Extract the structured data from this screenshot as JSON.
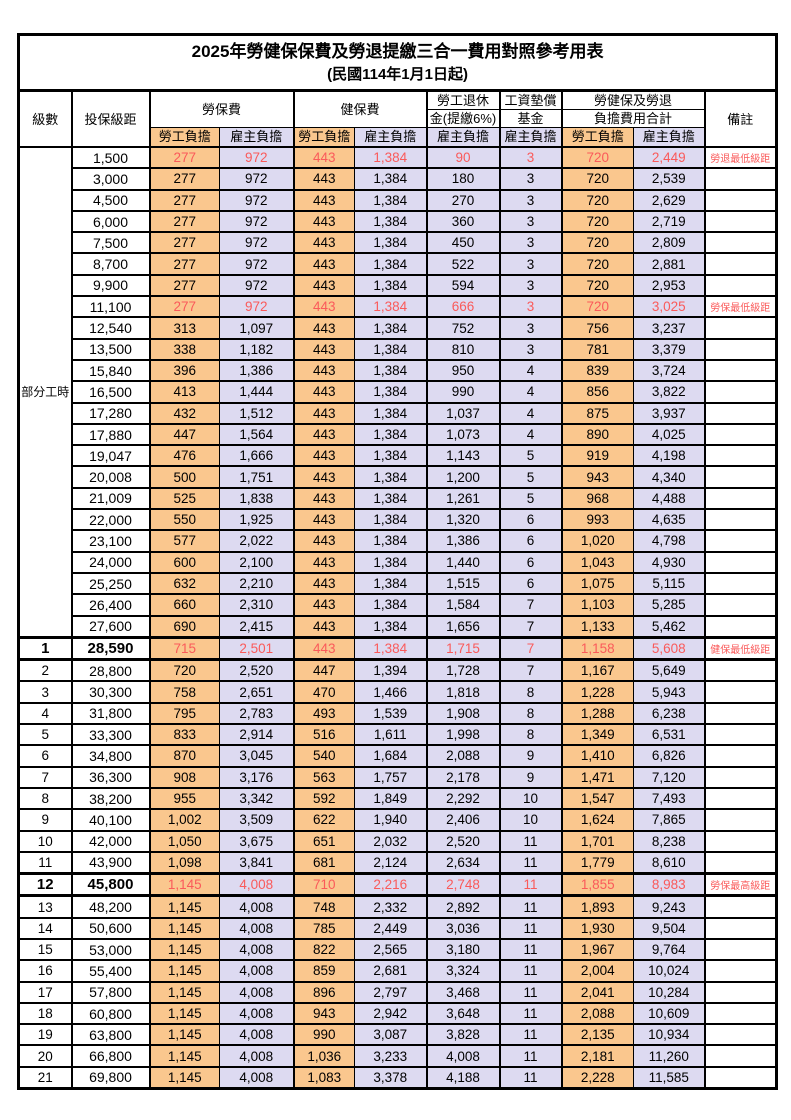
{
  "title": "2025年勞健保保費及勞退提繳三合一費用對照參考用表",
  "subtitle": "(民國114年1月1日起)",
  "colors": {
    "employee_col_bg": "#FAC78E",
    "employer_col_bg": "#DDDAF1",
    "highlight_text": "#FA5A5A",
    "border": "#000000"
  },
  "table": {
    "head": {
      "level": "級數",
      "bracket": "投保級距",
      "labor": "勞保費",
      "health": "健保費",
      "pension_line1": "勞工退休",
      "pension_line2": "金(提繳6%)",
      "fund_line1": "工資墊償",
      "fund_line2": "基金",
      "total_line1": "勞健保及勞退",
      "total_line2": "負擔費用合計",
      "note": "備註",
      "employee": "勞工負擔",
      "employer": "雇主負擔"
    },
    "part_time_label": "部分工時",
    "rows": [
      {
        "level": "",
        "cells": [
          "1,500",
          "277",
          "972",
          "443",
          "1,384",
          "90",
          "3",
          "720",
          "2,449"
        ],
        "note": "勞退最低級距",
        "red": true,
        "bold": false
      },
      {
        "level": "",
        "cells": [
          "3,000",
          "277",
          "972",
          "443",
          "1,384",
          "180",
          "3",
          "720",
          "2,539"
        ],
        "note": "",
        "red": false,
        "bold": false
      },
      {
        "level": "",
        "cells": [
          "4,500",
          "277",
          "972",
          "443",
          "1,384",
          "270",
          "3",
          "720",
          "2,629"
        ],
        "note": "",
        "red": false,
        "bold": false
      },
      {
        "level": "",
        "cells": [
          "6,000",
          "277",
          "972",
          "443",
          "1,384",
          "360",
          "3",
          "720",
          "2,719"
        ],
        "note": "",
        "red": false,
        "bold": false
      },
      {
        "level": "",
        "cells": [
          "7,500",
          "277",
          "972",
          "443",
          "1,384",
          "450",
          "3",
          "720",
          "2,809"
        ],
        "note": "",
        "red": false,
        "bold": false
      },
      {
        "level": "",
        "cells": [
          "8,700",
          "277",
          "972",
          "443",
          "1,384",
          "522",
          "3",
          "720",
          "2,881"
        ],
        "note": "",
        "red": false,
        "bold": false
      },
      {
        "level": "",
        "cells": [
          "9,900",
          "277",
          "972",
          "443",
          "1,384",
          "594",
          "3",
          "720",
          "2,953"
        ],
        "note": "",
        "red": false,
        "bold": false
      },
      {
        "level": "",
        "cells": [
          "11,100",
          "277",
          "972",
          "443",
          "1,384",
          "666",
          "3",
          "720",
          "3,025"
        ],
        "note": "勞保最低級距",
        "red": true,
        "bold": false
      },
      {
        "level": "",
        "cells": [
          "12,540",
          "313",
          "1,097",
          "443",
          "1,384",
          "752",
          "3",
          "756",
          "3,237"
        ],
        "note": "",
        "red": false,
        "bold": false
      },
      {
        "level": "",
        "cells": [
          "13,500",
          "338",
          "1,182",
          "443",
          "1,384",
          "810",
          "3",
          "781",
          "3,379"
        ],
        "note": "",
        "red": false,
        "bold": false
      },
      {
        "level": "",
        "cells": [
          "15,840",
          "396",
          "1,386",
          "443",
          "1,384",
          "950",
          "4",
          "839",
          "3,724"
        ],
        "note": "",
        "red": false,
        "bold": false
      },
      {
        "level": "",
        "cells": [
          "16,500",
          "413",
          "1,444",
          "443",
          "1,384",
          "990",
          "4",
          "856",
          "3,822"
        ],
        "note": "",
        "red": false,
        "bold": false
      },
      {
        "level": "",
        "cells": [
          "17,280",
          "432",
          "1,512",
          "443",
          "1,384",
          "1,037",
          "4",
          "875",
          "3,937"
        ],
        "note": "",
        "red": false,
        "bold": false
      },
      {
        "level": "",
        "cells": [
          "17,880",
          "447",
          "1,564",
          "443",
          "1,384",
          "1,073",
          "4",
          "890",
          "4,025"
        ],
        "note": "",
        "red": false,
        "bold": false
      },
      {
        "level": "",
        "cells": [
          "19,047",
          "476",
          "1,666",
          "443",
          "1,384",
          "1,143",
          "5",
          "919",
          "4,198"
        ],
        "note": "",
        "red": false,
        "bold": false
      },
      {
        "level": "",
        "cells": [
          "20,008",
          "500",
          "1,751",
          "443",
          "1,384",
          "1,200",
          "5",
          "943",
          "4,340"
        ],
        "note": "",
        "red": false,
        "bold": false
      },
      {
        "level": "",
        "cells": [
          "21,009",
          "525",
          "1,838",
          "443",
          "1,384",
          "1,261",
          "5",
          "968",
          "4,488"
        ],
        "note": "",
        "red": false,
        "bold": false
      },
      {
        "level": "",
        "cells": [
          "22,000",
          "550",
          "1,925",
          "443",
          "1,384",
          "1,320",
          "6",
          "993",
          "4,635"
        ],
        "note": "",
        "red": false,
        "bold": false
      },
      {
        "level": "",
        "cells": [
          "23,100",
          "577",
          "2,022",
          "443",
          "1,384",
          "1,386",
          "6",
          "1,020",
          "4,798"
        ],
        "note": "",
        "red": false,
        "bold": false
      },
      {
        "level": "",
        "cells": [
          "24,000",
          "600",
          "2,100",
          "443",
          "1,384",
          "1,440",
          "6",
          "1,043",
          "4,930"
        ],
        "note": "",
        "red": false,
        "bold": false
      },
      {
        "level": "",
        "cells": [
          "25,250",
          "632",
          "2,210",
          "443",
          "1,384",
          "1,515",
          "6",
          "1,075",
          "5,115"
        ],
        "note": "",
        "red": false,
        "bold": false
      },
      {
        "level": "",
        "cells": [
          "26,400",
          "660",
          "2,310",
          "443",
          "1,384",
          "1,584",
          "7",
          "1,103",
          "5,285"
        ],
        "note": "",
        "red": false,
        "bold": false
      },
      {
        "level": "",
        "cells": [
          "27,600",
          "690",
          "2,415",
          "443",
          "1,384",
          "1,656",
          "7",
          "1,133",
          "5,462"
        ],
        "note": "",
        "red": false,
        "bold": false
      },
      {
        "level": "1",
        "cells": [
          "28,590",
          "715",
          "2,501",
          "443",
          "1,384",
          "1,715",
          "7",
          "1,158",
          "5,608"
        ],
        "note": "健保最低級距",
        "red": true,
        "bold": true
      },
      {
        "level": "2",
        "cells": [
          "28,800",
          "720",
          "2,520",
          "447",
          "1,394",
          "1,728",
          "7",
          "1,167",
          "5,649"
        ],
        "note": "",
        "red": false,
        "bold": false
      },
      {
        "level": "3",
        "cells": [
          "30,300",
          "758",
          "2,651",
          "470",
          "1,466",
          "1,818",
          "8",
          "1,228",
          "5,943"
        ],
        "note": "",
        "red": false,
        "bold": false
      },
      {
        "level": "4",
        "cells": [
          "31,800",
          "795",
          "2,783",
          "493",
          "1,539",
          "1,908",
          "8",
          "1,288",
          "6,238"
        ],
        "note": "",
        "red": false,
        "bold": false
      },
      {
        "level": "5",
        "cells": [
          "33,300",
          "833",
          "2,914",
          "516",
          "1,611",
          "1,998",
          "8",
          "1,349",
          "6,531"
        ],
        "note": "",
        "red": false,
        "bold": false
      },
      {
        "level": "6",
        "cells": [
          "34,800",
          "870",
          "3,045",
          "540",
          "1,684",
          "2,088",
          "9",
          "1,410",
          "6,826"
        ],
        "note": "",
        "red": false,
        "bold": false
      },
      {
        "level": "7",
        "cells": [
          "36,300",
          "908",
          "3,176",
          "563",
          "1,757",
          "2,178",
          "9",
          "1,471",
          "7,120"
        ],
        "note": "",
        "red": false,
        "bold": false
      },
      {
        "level": "8",
        "cells": [
          "38,200",
          "955",
          "3,342",
          "592",
          "1,849",
          "2,292",
          "10",
          "1,547",
          "7,493"
        ],
        "note": "",
        "red": false,
        "bold": false
      },
      {
        "level": "9",
        "cells": [
          "40,100",
          "1,002",
          "3,509",
          "622",
          "1,940",
          "2,406",
          "10",
          "1,624",
          "7,865"
        ],
        "note": "",
        "red": false,
        "bold": false
      },
      {
        "level": "10",
        "cells": [
          "42,000",
          "1,050",
          "3,675",
          "651",
          "2,032",
          "2,520",
          "11",
          "1,701",
          "8,238"
        ],
        "note": "",
        "red": false,
        "bold": false
      },
      {
        "level": "11",
        "cells": [
          "43,900",
          "1,098",
          "3,841",
          "681",
          "2,124",
          "2,634",
          "11",
          "1,779",
          "8,610"
        ],
        "note": "",
        "red": false,
        "bold": false
      },
      {
        "level": "12",
        "cells": [
          "45,800",
          "1,145",
          "4,008",
          "710",
          "2,216",
          "2,748",
          "11",
          "1,855",
          "8,983"
        ],
        "note": "勞保最高級距",
        "red": true,
        "bold": true
      },
      {
        "level": "13",
        "cells": [
          "48,200",
          "1,145",
          "4,008",
          "748",
          "2,332",
          "2,892",
          "11",
          "1,893",
          "9,243"
        ],
        "note": "",
        "red": false,
        "bold": false
      },
      {
        "level": "14",
        "cells": [
          "50,600",
          "1,145",
          "4,008",
          "785",
          "2,449",
          "3,036",
          "11",
          "1,930",
          "9,504"
        ],
        "note": "",
        "red": false,
        "bold": false
      },
      {
        "level": "15",
        "cells": [
          "53,000",
          "1,145",
          "4,008",
          "822",
          "2,565",
          "3,180",
          "11",
          "1,967",
          "9,764"
        ],
        "note": "",
        "red": false,
        "bold": false
      },
      {
        "level": "16",
        "cells": [
          "55,400",
          "1,145",
          "4,008",
          "859",
          "2,681",
          "3,324",
          "11",
          "2,004",
          "10,024"
        ],
        "note": "",
        "red": false,
        "bold": false
      },
      {
        "level": "17",
        "cells": [
          "57,800",
          "1,145",
          "4,008",
          "896",
          "2,797",
          "3,468",
          "11",
          "2,041",
          "10,284"
        ],
        "note": "",
        "red": false,
        "bold": false
      },
      {
        "level": "18",
        "cells": [
          "60,800",
          "1,145",
          "4,008",
          "943",
          "2,942",
          "3,648",
          "11",
          "2,088",
          "10,609"
        ],
        "note": "",
        "red": false,
        "bold": false
      },
      {
        "level": "19",
        "cells": [
          "63,800",
          "1,145",
          "4,008",
          "990",
          "3,087",
          "3,828",
          "11",
          "2,135",
          "10,934"
        ],
        "note": "",
        "red": false,
        "bold": false
      },
      {
        "level": "20",
        "cells": [
          "66,800",
          "1,145",
          "4,008",
          "1,036",
          "3,233",
          "4,008",
          "11",
          "2,181",
          "11,260"
        ],
        "note": "",
        "red": false,
        "bold": false
      },
      {
        "level": "21",
        "cells": [
          "69,800",
          "1,145",
          "4,008",
          "1,083",
          "3,378",
          "4,188",
          "11",
          "2,228",
          "11,585"
        ],
        "note": "",
        "red": false,
        "bold": false
      }
    ]
  }
}
